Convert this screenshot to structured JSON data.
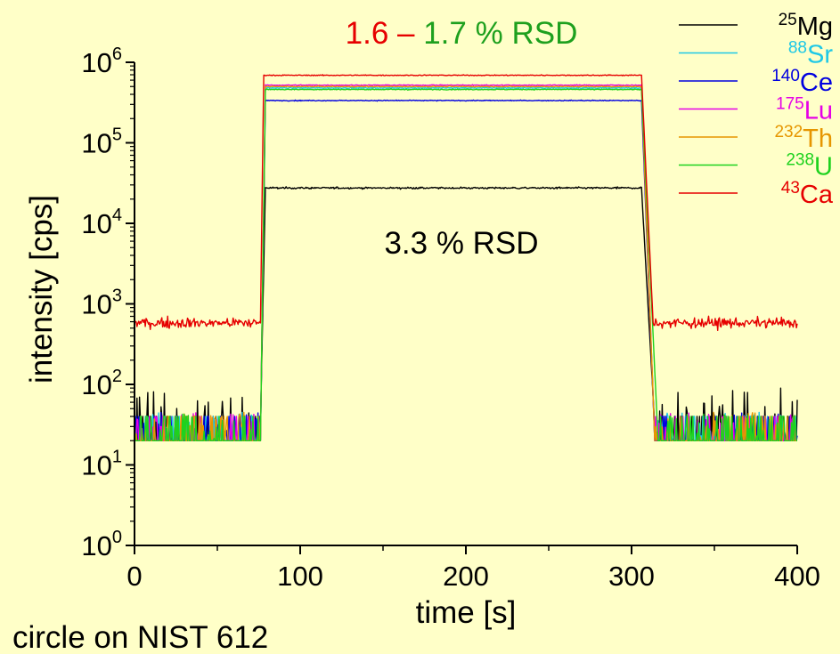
{
  "chart_data": {
    "type": "line",
    "xlabel": "time [s]",
    "ylabel": "intensity [cps]",
    "xlim": [
      0,
      400
    ],
    "ylim_log10": [
      0,
      6
    ],
    "y_scale": "log",
    "x_ticks": [
      "0",
      "100",
      "200",
      "300",
      "400"
    ],
    "y_ticks": [
      {
        "base": "10",
        "exp": "0"
      },
      {
        "base": "10",
        "exp": "1"
      },
      {
        "base": "10",
        "exp": "2"
      },
      {
        "base": "10",
        "exp": "3"
      },
      {
        "base": "10",
        "exp": "4"
      },
      {
        "base": "10",
        "exp": "5"
      },
      {
        "base": "10",
        "exp": "6"
      }
    ],
    "grid": false,
    "legend_position": "top-right",
    "annotations": {
      "rsd_top_part1": "1.6 – ",
      "rsd_top_part2": "1.7 % RSD",
      "rsd_mid": "3.3 % RSD",
      "sample": "circle on NIST 612"
    },
    "series": [
      {
        "iso": "25",
        "el": "Mg",
        "color": "#000000",
        "background": 30,
        "plateau": 27500,
        "rise_start": 76,
        "rise_end": 79,
        "fall_start": 306,
        "fall_end": 314,
        "noise": 0.03
      },
      {
        "iso": "88",
        "el": "Sr",
        "color": "#1EC8E6",
        "background": 20,
        "plateau": 480000,
        "rise_start": 76,
        "rise_end": 79,
        "fall_start": 306,
        "fall_end": 314,
        "noise": 0.015
      },
      {
        "iso": "140",
        "el": "Ce",
        "color": "#0000E0",
        "background": 20,
        "plateau": 335000,
        "rise_start": 76,
        "rise_end": 79,
        "fall_start": 306,
        "fall_end": 314,
        "noise": 0.015
      },
      {
        "iso": "175",
        "el": "Lu",
        "color": "#E600E6",
        "background": 20,
        "plateau": 520000,
        "rise_start": 76,
        "rise_end": 79,
        "fall_start": 306,
        "fall_end": 314,
        "noise": 0.015
      },
      {
        "iso": "232",
        "el": "Th",
        "color": "#E69600",
        "background": 20,
        "plateau": 500000,
        "rise_start": 76,
        "rise_end": 79,
        "fall_start": 306,
        "fall_end": 314,
        "noise": 0.015
      },
      {
        "iso": "238",
        "el": "U",
        "color": "#1ED21E",
        "background": 20,
        "plateau": 460000,
        "rise_start": 76,
        "rise_end": 79,
        "fall_start": 306,
        "fall_end": 316,
        "noise": 0.015
      },
      {
        "iso": "43",
        "el": "Ca",
        "color": "#E60000",
        "background": 580,
        "plateau": 690000,
        "rise_start": 76,
        "rise_end": 78,
        "fall_start": 306,
        "fall_end": 313,
        "noise": 0.015
      }
    ]
  },
  "colors": {
    "background": "#FFFFC8",
    "rsd_red": "#E60000",
    "rsd_green": "#1EA01E"
  }
}
